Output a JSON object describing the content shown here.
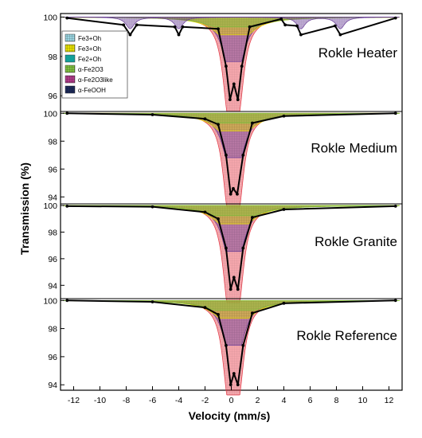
{
  "chart_data": {
    "type": "line",
    "xlabel": "Velocity (mm/s)",
    "ylabel": "Transmission (%)",
    "xlim": [
      -13,
      13
    ],
    "x_ticks": [
      -12,
      -10,
      -8,
      -6,
      -4,
      -2,
      0,
      2,
      4,
      6,
      8,
      10,
      12
    ],
    "legend": {
      "placement": "top-left (first panel)",
      "entries": [
        {
          "label": "Fe3+Oh",
          "color": "#9ad4e0",
          "pattern": "grid"
        },
        {
          "label": "Fe3+Oh",
          "color": "#e6e000",
          "pattern": "grid"
        },
        {
          "label": "Fe2+Oh",
          "color": "#12a09a",
          "pattern": "solid"
        },
        {
          "label": "α-Fe2O3",
          "color": "#7fbf3f",
          "pattern": "grid"
        },
        {
          "label": "α-Fe2O3like",
          "color": "#b03a8a",
          "pattern": "grid"
        },
        {
          "label": "α-FeOOH",
          "color": "#1c2a5a",
          "pattern": "grid"
        }
      ]
    },
    "panels": [
      {
        "title": "Rokle Heater",
        "y_ticks": [
          96,
          98,
          100
        ],
        "ylim": [
          95.2,
          100.3
        ],
        "series": [
          {
            "values": {
              "x": [
                -12.5,
                -8.2,
                -7.7,
                -7.2,
                -4.3,
                -4.0,
                -3.7,
                -1.0,
                -0.4,
                -0.1,
                0.2,
                0.5,
                0.8,
                1.4,
                3.8,
                4.1,
                5.0,
                5.3,
                7.9,
                8.3,
                12.5
              ],
              "y": [
                99.95,
                99.6,
                99.1,
                99.6,
                99.5,
                99.1,
                99.5,
                99.4,
                97.5,
                95.8,
                96.6,
                95.8,
                97.5,
                99.5,
                99.9,
                99.6,
                99.55,
                99.1,
                99.55,
                99.1,
                99.95
              ]
            }
          }
        ]
      },
      {
        "title": "Rokle Medium",
        "y_ticks": [
          94,
          96,
          98,
          100
        ],
        "ylim": [
          93.5,
          100.3
        ],
        "series": [
          {
            "values": {
              "x": [
                -12.5,
                -6,
                -2,
                -1.0,
                -0.4,
                -0.05,
                0.15,
                0.45,
                0.9,
                1.6,
                4,
                12.5
              ],
              "y": [
                100.0,
                99.9,
                99.6,
                99.2,
                97.0,
                94.2,
                94.6,
                94.2,
                97.0,
                99.3,
                99.8,
                100.0
              ]
            }
          }
        ]
      },
      {
        "title": "Rokle Granite",
        "y_ticks": [
          94,
          96,
          98,
          100
        ],
        "ylim": [
          93.0,
          100.3
        ],
        "series": [
          {
            "values": {
              "x": [
                -12.5,
                -6,
                -2,
                -1.0,
                -0.4,
                -0.05,
                0.2,
                0.5,
                0.9,
                1.6,
                4,
                12.5
              ],
              "y": [
                99.95,
                99.9,
                99.5,
                99.0,
                96.8,
                93.7,
                94.6,
                93.7,
                96.8,
                99.1,
                99.7,
                99.95
              ]
            }
          }
        ]
      },
      {
        "title": "Rokle Reference",
        "y_ticks": [
          94,
          96,
          98,
          100
        ],
        "ylim": [
          93.5,
          100.3
        ],
        "series": [
          {
            "values": {
              "x": [
                -12.5,
                -6,
                -2,
                -1.0,
                -0.4,
                -0.05,
                0.2,
                0.5,
                0.9,
                1.6,
                4,
                12.5
              ],
              "y": [
                100.0,
                99.9,
                99.5,
                99.0,
                96.8,
                94.0,
                94.8,
                94.0,
                96.8,
                99.1,
                99.8,
                100.0
              ]
            }
          }
        ]
      }
    ]
  }
}
